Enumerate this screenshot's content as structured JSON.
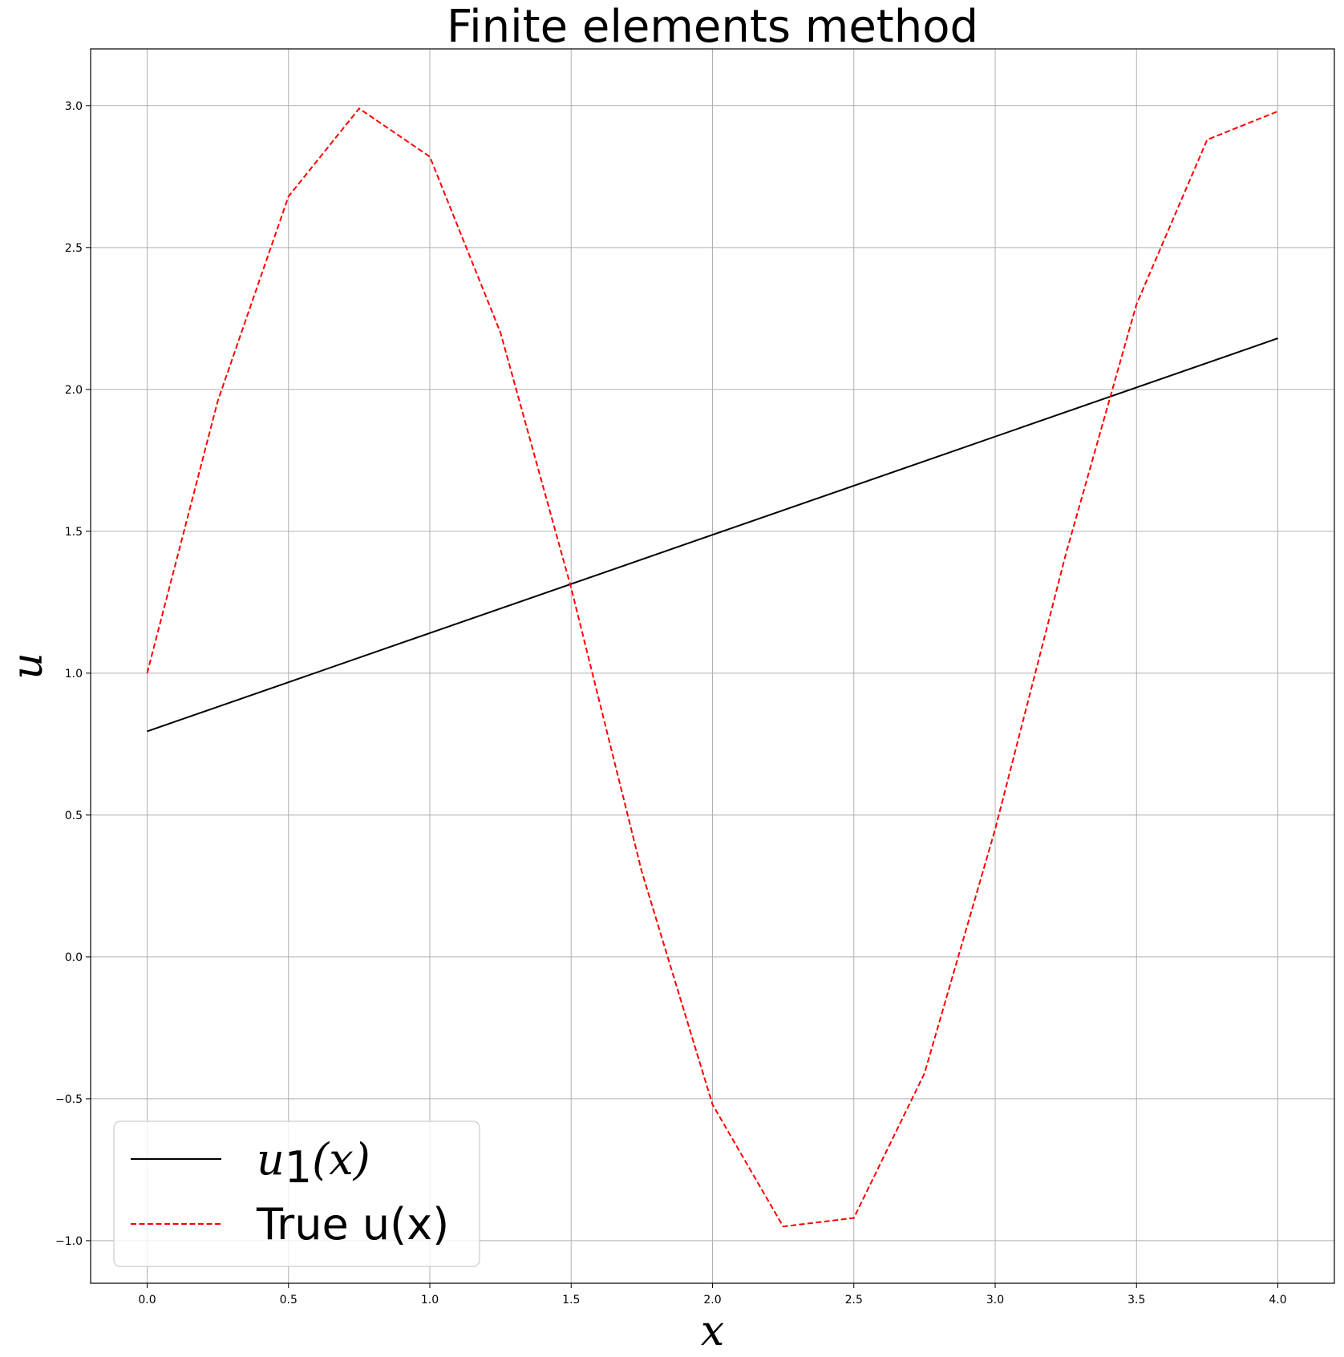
{
  "chart_data": {
    "type": "line",
    "title": "Finite elements method",
    "xlabel": "x",
    "ylabel": "u",
    "xlim": [
      -0.2,
      4.2
    ],
    "ylim": [
      -1.15,
      3.2
    ],
    "xticks": [
      0.0,
      0.5,
      1.0,
      1.5,
      2.0,
      2.5,
      3.0,
      3.5,
      4.0
    ],
    "xtick_labels": [
      "0.0",
      "0.5",
      "1.0",
      "1.5",
      "2.0",
      "2.5",
      "3.0",
      "3.5",
      "4.0"
    ],
    "yticks": [
      -1.0,
      -0.5,
      0.0,
      0.5,
      1.0,
      1.5,
      2.0,
      2.5,
      3.0
    ],
    "ytick_labels": [
      "−1.0",
      "−0.5",
      "0.0",
      "0.5",
      "1.0",
      "1.5",
      "2.0",
      "2.5",
      "3.0"
    ],
    "grid": true,
    "legend_position": "lower-left",
    "series": [
      {
        "name": "u₁(x)",
        "legend_main": "u",
        "legend_sub": "1",
        "legend_tail": "(x)",
        "color": "#000000",
        "style": "solid",
        "x": [
          0.0,
          4.0
        ],
        "y": [
          0.795,
          2.18
        ]
      },
      {
        "name": "True u(x)",
        "color": "#ff0000",
        "style": "dashed",
        "x": [
          0.0,
          0.25,
          0.5,
          0.75,
          1.0,
          1.25,
          1.5,
          1.75,
          2.0,
          2.25,
          2.5,
          2.75,
          3.0,
          3.25,
          3.5,
          3.75,
          4.0
        ],
        "y": [
          1.0,
          1.96,
          2.68,
          2.99,
          2.82,
          2.2,
          1.3,
          0.3,
          -0.52,
          -0.95,
          -0.92,
          -0.41,
          0.45,
          1.42,
          2.3,
          2.88,
          2.98
        ]
      }
    ]
  }
}
